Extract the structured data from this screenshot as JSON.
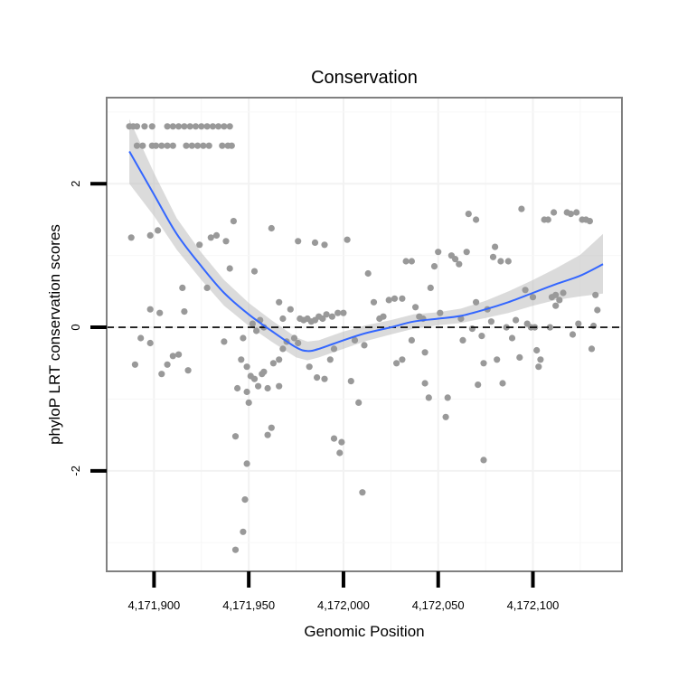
{
  "chart_data": {
    "type": "scatter",
    "title": "Conservation",
    "xlabel": "Genomic Position",
    "ylabel": "phyloP LRT conservation scores",
    "xlim": [
      4171875,
      4172147
    ],
    "ylim": [
      -3.4,
      3.2
    ],
    "x_ticks": [
      4171900,
      4171950,
      4172000,
      4172050,
      4172100
    ],
    "x_tick_labels": [
      "4,171,900",
      "4,171,950",
      "4,172,000",
      "4,172,050",
      "4,172,100"
    ],
    "y_ticks": [
      -2,
      0,
      2
    ],
    "y_tick_labels": [
      "-2",
      "0",
      "2"
    ],
    "grid": true,
    "reference_line": {
      "y": 0,
      "style": "dashed"
    },
    "colors": {
      "points": "#999999",
      "smooth": "#3366ff",
      "band": "#bebebe",
      "panel_border": "#808080",
      "reference": "#000000"
    },
    "smooth": {
      "x": [
        4171887,
        4171900,
        4171912,
        4171925,
        4171937,
        4171950,
        4171962,
        4171975,
        4171981,
        4171987,
        4172000,
        4172012,
        4172025,
        4172037,
        4172050,
        4172062,
        4172075,
        4172087,
        4172100,
        4172112,
        4172125,
        4172137
      ],
      "y": [
        2.45,
        1.85,
        1.3,
        0.85,
        0.48,
        0.18,
        -0.05,
        -0.28,
        -0.33,
        -0.3,
        -0.18,
        -0.08,
        0.0,
        0.08,
        0.12,
        0.16,
        0.25,
        0.35,
        0.48,
        0.6,
        0.72,
        0.88
      ],
      "lower": [
        2.0,
        1.55,
        1.08,
        0.66,
        0.3,
        0.02,
        -0.2,
        -0.42,
        -0.46,
        -0.42,
        -0.3,
        -0.19,
        -0.1,
        -0.02,
        0.03,
        0.06,
        0.13,
        0.2,
        0.3,
        0.38,
        0.43,
        0.47
      ],
      "upper": [
        2.9,
        2.15,
        1.52,
        1.04,
        0.66,
        0.34,
        0.1,
        -0.14,
        -0.2,
        -0.18,
        -0.06,
        0.03,
        0.1,
        0.18,
        0.21,
        0.26,
        0.37,
        0.5,
        0.66,
        0.82,
        1.01,
        1.3
      ]
    },
    "points": [
      [
        4171887,
        2.8
      ],
      [
        4171889,
        2.8
      ],
      [
        4171891,
        2.8
      ],
      [
        4171895,
        2.8
      ],
      [
        4171899,
        2.8
      ],
      [
        4171907,
        2.8
      ],
      [
        4171910,
        2.8
      ],
      [
        4171913,
        2.8
      ],
      [
        4171916,
        2.8
      ],
      [
        4171919,
        2.8
      ],
      [
        4171922,
        2.8
      ],
      [
        4171925,
        2.8
      ],
      [
        4171928,
        2.8
      ],
      [
        4171931,
        2.8
      ],
      [
        4171934,
        2.8
      ],
      [
        4171937,
        2.8
      ],
      [
        4171940,
        2.8
      ],
      [
        4171891,
        2.53
      ],
      [
        4171894,
        2.53
      ],
      [
        4171899,
        2.53
      ],
      [
        4171901,
        2.53
      ],
      [
        4171904,
        2.53
      ],
      [
        4171907,
        2.53
      ],
      [
        4171910,
        2.53
      ],
      [
        4171917,
        2.53
      ],
      [
        4171920,
        2.53
      ],
      [
        4171923,
        2.53
      ],
      [
        4171926,
        2.53
      ],
      [
        4171929,
        2.53
      ],
      [
        4171936,
        2.53
      ],
      [
        4171939,
        2.53
      ],
      [
        4171941,
        2.53
      ],
      [
        4171888,
        1.25
      ],
      [
        4171898,
        1.28
      ],
      [
        4171902,
        1.35
      ],
      [
        4171930,
        1.25
      ],
      [
        4171933,
        1.28
      ],
      [
        4171938,
        1.2
      ],
      [
        4171942,
        1.48
      ],
      [
        4171924,
        1.15
      ],
      [
        4171928,
        0.55
      ],
      [
        4171915,
        0.55
      ],
      [
        4171940,
        0.82
      ],
      [
        4171953,
        0.78
      ],
      [
        4171898,
        0.25
      ],
      [
        4171903,
        0.2
      ],
      [
        4171916,
        0.22
      ],
      [
        4171893,
        -0.15
      ],
      [
        4171898,
        -0.22
      ],
      [
        4171907,
        -0.52
      ],
      [
        4171910,
        -0.4
      ],
      [
        4171913,
        -0.38
      ],
      [
        4171918,
        -0.6
      ],
      [
        4171904,
        -0.65
      ],
      [
        4171890,
        -0.52
      ],
      [
        4171937,
        -0.2
      ],
      [
        4171943,
        -1.52
      ],
      [
        4171944,
        -0.85
      ],
      [
        4171946,
        -0.45
      ],
      [
        4171947,
        -0.15
      ],
      [
        4171949,
        -0.55
      ],
      [
        4171949,
        -0.9
      ],
      [
        4171950,
        -1.05
      ],
      [
        4171951,
        -0.68
      ],
      [
        4171953,
        -0.72
      ],
      [
        4171955,
        -0.82
      ],
      [
        4171957,
        -0.65
      ],
      [
        4171958,
        -0.62
      ],
      [
        4171960,
        -0.85
      ],
      [
        4171960,
        -1.5
      ],
      [
        4171962,
        -1.4
      ],
      [
        4171963,
        -0.5
      ],
      [
        4171966,
        -0.82
      ],
      [
        4171966,
        -0.45
      ],
      [
        4171968,
        -0.3
      ],
      [
        4171943,
        -3.1
      ],
      [
        4171947,
        -2.85
      ],
      [
        4171948,
        -2.4
      ],
      [
        4171949,
        -1.9
      ],
      [
        4171952,
        0.05
      ],
      [
        4171954,
        -0.05
      ],
      [
        4171956,
        0.1
      ],
      [
        4171958,
        0.0
      ],
      [
        4171962,
        1.38
      ],
      [
        4171966,
        0.35
      ],
      [
        4171968,
        0.12
      ],
      [
        4171972,
        0.25
      ],
      [
        4171970,
        -0.2
      ],
      [
        4171974,
        -0.15
      ],
      [
        4171976,
        -0.22
      ],
      [
        4171977,
        0.12
      ],
      [
        4171979,
        0.1
      ],
      [
        4171981,
        0.12
      ],
      [
        4171983,
        0.08
      ],
      [
        4171985,
        0.1
      ],
      [
        4171987,
        0.15
      ],
      [
        4171989,
        0.12
      ],
      [
        4171991,
        0.18
      ],
      [
        4171994,
        0.15
      ],
      [
        4171997,
        0.2
      ],
      [
        4172000,
        0.2
      ],
      [
        4171982,
        -0.55
      ],
      [
        4171986,
        -0.7
      ],
      [
        4171990,
        -0.72
      ],
      [
        4171993,
        -0.45
      ],
      [
        4171995,
        -0.3
      ],
      [
        4171995,
        -1.55
      ],
      [
        4171998,
        -1.75
      ],
      [
        4171999,
        -1.6
      ],
      [
        4171985,
        1.18
      ],
      [
        4171990,
        1.15
      ],
      [
        4172002,
        1.22
      ],
      [
        4171976,
        1.2
      ],
      [
        4172004,
        -0.75
      ],
      [
        4172006,
        -0.18
      ],
      [
        4172008,
        -1.05
      ],
      [
        4172010,
        -2.3
      ],
      [
        4172011,
        -0.25
      ],
      [
        4172013,
        0.75
      ],
      [
        4172016,
        0.35
      ],
      [
        4172019,
        0.12
      ],
      [
        4172021,
        0.15
      ],
      [
        4172024,
        0.38
      ],
      [
        4172027,
        0.4
      ],
      [
        4172031,
        0.4
      ],
      [
        4172028,
        -0.5
      ],
      [
        4172031,
        -0.45
      ],
      [
        4172036,
        -0.18
      ],
      [
        4172033,
        0.92
      ],
      [
        4172036,
        0.92
      ],
      [
        4172038,
        0.28
      ],
      [
        4172040,
        0.15
      ],
      [
        4172042,
        0.12
      ],
      [
        4172043,
        -0.35
      ],
      [
        4172043,
        -0.78
      ],
      [
        4172045,
        -0.98
      ],
      [
        4172046,
        0.55
      ],
      [
        4172048,
        0.85
      ],
      [
        4172050,
        1.05
      ],
      [
        4172051,
        0.2
      ],
      [
        4172054,
        -1.25
      ],
      [
        4172055,
        -0.98
      ],
      [
        4172057,
        1.0
      ],
      [
        4172059,
        0.95
      ],
      [
        4172061,
        0.88
      ],
      [
        4172062,
        0.12
      ],
      [
        4172063,
        -0.18
      ],
      [
        4172065,
        1.05
      ],
      [
        4172066,
        1.58
      ],
      [
        4172068,
        -0.02
      ],
      [
        4172070,
        1.5
      ],
      [
        4172070,
        0.35
      ],
      [
        4172071,
        -0.8
      ],
      [
        4172073,
        -0.12
      ],
      [
        4172074,
        -0.5
      ],
      [
        4172074,
        -1.85
      ],
      [
        4172076,
        0.25
      ],
      [
        4172078,
        0.08
      ],
      [
        4172079,
        0.98
      ],
      [
        4172080,
        1.12
      ],
      [
        4172081,
        -0.45
      ],
      [
        4172083,
        0.92
      ],
      [
        4172084,
        -0.78
      ],
      [
        4172086,
        0.0
      ],
      [
        4172087,
        0.92
      ],
      [
        4172089,
        -0.15
      ],
      [
        4172091,
        0.1
      ],
      [
        4172093,
        -0.42
      ],
      [
        4172094,
        1.65
      ],
      [
        4172096,
        0.52
      ],
      [
        4172097,
        0.05
      ],
      [
        4172099,
        0.0
      ],
      [
        4172100,
        0.42
      ],
      [
        4172102,
        -0.32
      ],
      [
        4172103,
        -0.55
      ],
      [
        4172104,
        -0.45
      ],
      [
        4172106,
        1.5
      ],
      [
        4172108,
        1.5
      ],
      [
        4172109,
        0.0
      ],
      [
        4172110,
        0.42
      ],
      [
        4172111,
        1.6
      ],
      [
        4172112,
        0.45
      ],
      [
        4172114,
        0.38
      ],
      [
        4172116,
        0.48
      ],
      [
        4172118,
        1.6
      ],
      [
        4172120,
        1.58
      ],
      [
        4172121,
        -0.1
      ],
      [
        4172123,
        1.6
      ],
      [
        4172124,
        0.05
      ],
      [
        4172126,
        1.5
      ],
      [
        4172128,
        1.5
      ],
      [
        4172130,
        1.48
      ],
      [
        4172132,
        0.02
      ],
      [
        4172133,
        0.45
      ],
      [
        4172134,
        0.24
      ],
      [
        4172131,
        -0.3
      ],
      [
        4172112,
        0.3
      ],
      [
        4172101,
        0.0
      ]
    ]
  }
}
